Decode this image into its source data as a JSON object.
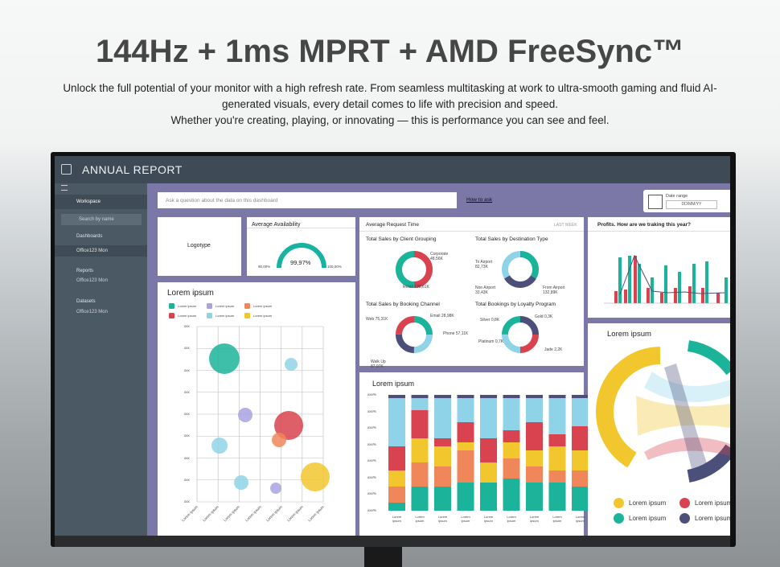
{
  "header": {
    "title": "144Hz + 1ms MPRT + AMD FreeSync™",
    "lines": [
      "Unlock the full potential of your monitor with a high refresh rate. From seamless multitasking at work to ultra-smooth gaming and fluid AI-",
      "generated visuals, every detail comes to life with precision and speed.",
      "Whether you're creating, playing, or innovating — this is performance you can see and feel."
    ]
  },
  "dashboard": {
    "title": "ANNUAL REPORT",
    "sidebar": {
      "workspace": "Workspace",
      "search": "Search by name",
      "sections": [
        {
          "label": "Dashboards",
          "item": "Office123 Mon"
        },
        {
          "label": "Reports",
          "item": "Office123 Mon"
        },
        {
          "label": "Datasets",
          "item": "Office123 Mon"
        }
      ]
    },
    "ask": "Ask a question about the data on this dashboard",
    "how_to_ask": "How to ask",
    "date_range": {
      "label": "Date range",
      "value": "DD/MM/YY"
    },
    "logotype": "Logotype",
    "availability": {
      "title": "Average Availability",
      "value": "99,97%",
      "min": "90,00%",
      "max": "100,00%"
    },
    "request": {
      "title": "Average Request Time",
      "period": "LAST WEEK",
      "donuts": [
        {
          "title": "Total Sales by Client Grouping",
          "labels": [
            "Corporate 48,56K",
            "Retail 198,61K"
          ]
        },
        {
          "title": "Total Sales by Destination Type",
          "labels": [
            "To Airport 82,73K",
            "Non Airport 33,43K",
            "From Airport 132,89K"
          ]
        },
        {
          "title": "Total Sales by Booking Channel",
          "labels": [
            "Web 75,31K",
            "Email 28,98K",
            "Phone 57,11K",
            "Walk Up 87,97K"
          ]
        },
        {
          "title": "Total Bookings by Loyalty Program",
          "labels": [
            "Silver 0,8K",
            "Gold 0,3K",
            "Platinum 0,7K",
            "Jade 2,2K"
          ]
        }
      ]
    },
    "profits": {
      "title": "Profits. How are we traking this year?"
    },
    "bubble": {
      "title": "Lorem ipsum",
      "legend": [
        "Lorem ipsum",
        "Lorem ipsum",
        "Lorem ipsum",
        "Lorem ipsum",
        "Lorem ipsum",
        "Lorem ipsum"
      ],
      "y_labels": [
        "xxx",
        "xxx",
        "xxx",
        "xxx",
        "xxx",
        "xxx",
        "xxx",
        "xxx",
        "xxx"
      ],
      "x_labels": [
        "Lorem ipsum",
        "Lorem ipsum",
        "Lorem ipsum",
        "Lorem ipsum",
        "Lorem ipsum",
        "Lorem ipsum",
        "Lorem ipsum"
      ]
    },
    "stacked": {
      "title": "Lorem ipsum",
      "y_labels": [
        "xxx%",
        "xxx%",
        "xxx%",
        "xxx%",
        "xxx%",
        "xxx%",
        "xxx%",
        "xxx%"
      ],
      "x_labels": [
        "Lorem ipsum",
        "Lorem ipsum",
        "Lorem ipsum",
        "Lorem ipsum",
        "Lorem ipsum",
        "Lorem ipsum",
        "Lorem ipsum",
        "Lorem ipsum",
        "Lorem ipsum"
      ]
    },
    "chord": {
      "title": "Lorem ipsum",
      "legend": [
        "Lorem ipsum",
        "Lorem ipsum",
        "Lorem ipsum",
        "Lorem ipsum"
      ]
    }
  }
}
